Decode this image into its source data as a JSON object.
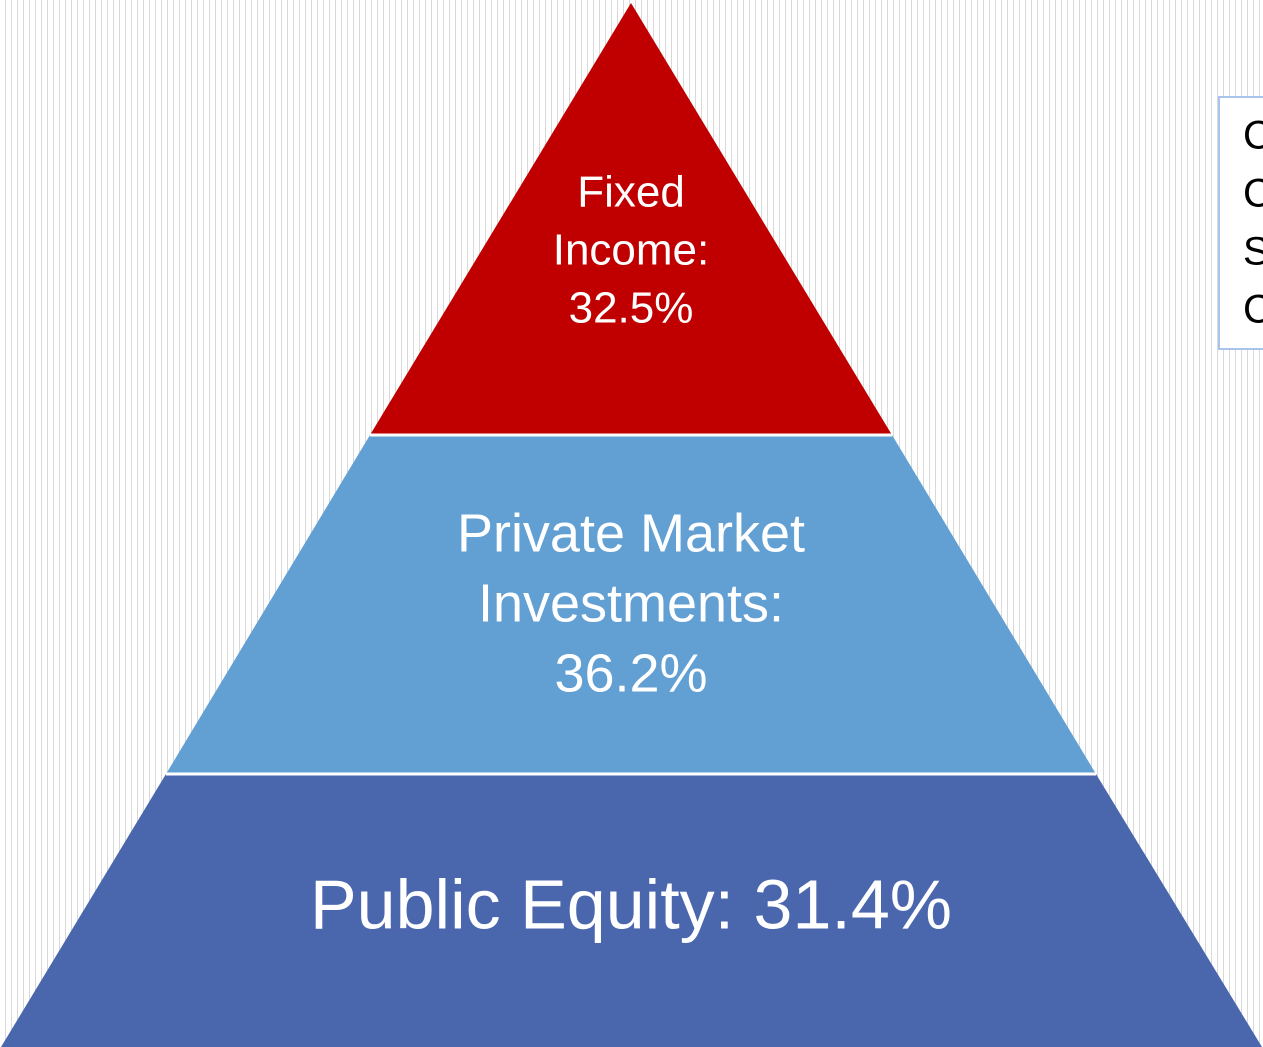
{
  "tiers": [
    {
      "lines": [
        "Fixed",
        "Income:",
        "32.5%"
      ]
    },
    {
      "lines": [
        "Private Market",
        "Investments:",
        "36.2%"
      ]
    },
    {
      "lines": [
        "Public Equity: 31.4%"
      ]
    }
  ],
  "side_note": {
    "lines": [
      "C",
      "C",
      "S",
      "C"
    ]
  }
}
